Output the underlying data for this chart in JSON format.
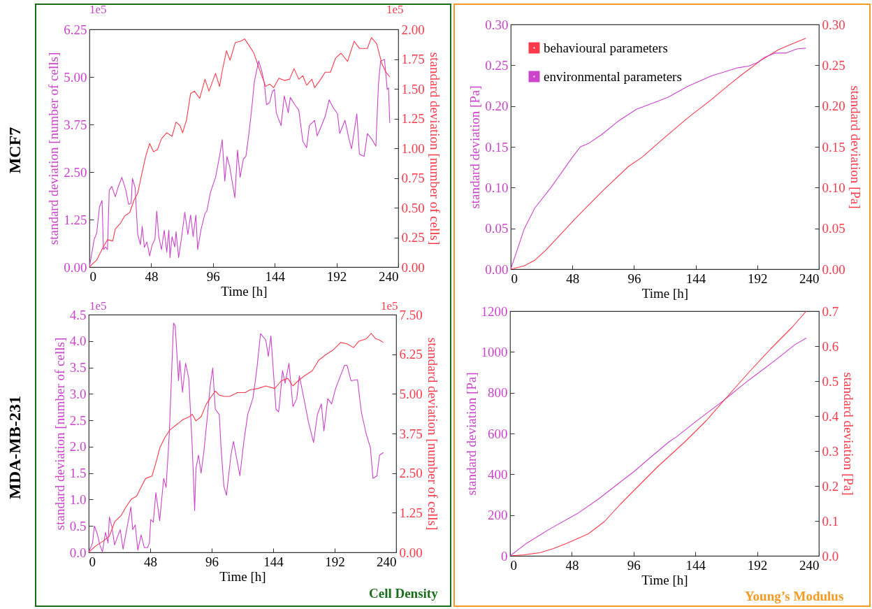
{
  "chart_data": [
    {
      "type": "line",
      "xlabel": "Time [h]",
      "ylabel": "standard deviation [number of cells]",
      "y2label": "standard deviation [number of cells]",
      "xlim": [
        0,
        240
      ],
      "xticks": [
        0,
        48,
        96,
        144,
        192,
        240
      ],
      "ylim": [
        0,
        6.25
      ],
      "yticks": [
        {
          "value": 0,
          "label": "0.00"
        },
        1.25,
        {
          "value": 2.5,
          "label": "2.50"
        },
        3.75,
        {
          "value": 5,
          "label": "5.00"
        },
        6.25
      ],
      "y2lim": [
        0,
        2
      ],
      "y2ticks": [
        {
          "value": 0,
          "label": "0.00"
        },
        0.25,
        {
          "value": 0.5,
          "label": "0.50"
        },
        0.75,
        {
          "value": 1,
          "label": "1.00"
        },
        1.25,
        {
          "value": 1.5,
          "label": "1.50"
        },
        1.75,
        {
          "value": 2,
          "label": "2.00"
        }
      ],
      "annotations": [
        "MCF7",
        "1e5",
        "1e5"
      ],
      "series": [
        {
          "color": "#cc44cc",
          "x": [
            0,
            3.7,
            5.7,
            7.8,
            9.8,
            10.9,
            12.5,
            14,
            15.4,
            17.4,
            20.1,
            22.2,
            25.2,
            28.3,
            30.4,
            32.4,
            33.4,
            35.5,
            37.5,
            39.6,
            41,
            42.7,
            44.7,
            46.8,
            48.8,
            50.9,
            52.3,
            53.9,
            56,
            58.1,
            60.1,
            61.7,
            62.6,
            64.2,
            66.3,
            67.3,
            69.3,
            71.4,
            74.1,
            76.5,
            78.6,
            80.6,
            82.7,
            84.1,
            86.8,
            89.8,
            91.3,
            94,
            98,
            101.1,
            103.2,
            105.2,
            106.9,
            109,
            113,
            115.1,
            117.1,
            119.6,
            121.6,
            123.7,
            125.7,
            128.2,
            131.5,
            134,
            136,
            137.6,
            140.1,
            142.1,
            143.8,
            145.2,
            148.9,
            151.4,
            154.5,
            156.1,
            159.6,
            162.7,
            165.8,
            168.8,
            170.9,
            175,
            177,
            179.5,
            183.2,
            186.3,
            189.3,
            192.8,
            194.5,
            198.6,
            201.6,
            203.7,
            207.8,
            209.8,
            213.5,
            216,
            219.1,
            222.6,
            224.6,
            226.3,
            229.3,
            231.4,
            232.4,
            233.4
          ],
          "values": [
            0,
            0.73,
            0.9,
            1.58,
            1.75,
            0.46,
            0.53,
            0.46,
            2.02,
            2.12,
            1.85,
            2.09,
            2.36,
            2.02,
            1.65,
            1.68,
            2.33,
            2.09,
            0.86,
            0.59,
            1.07,
            0.52,
            0.66,
            0.29,
            0.59,
            0.73,
            1.47,
            0.8,
            0.46,
            0.97,
            0.39,
            0.97,
            0.25,
            0.8,
            0.53,
            0.93,
            0.25,
            0.73,
            1.44,
            0.86,
            1.37,
            0.8,
            1.37,
            0.46,
            1,
            1.41,
            1.48,
            1.96,
            2.36,
            2.91,
            3.35,
            2.26,
            2.91,
            2.64,
            1.82,
            3.08,
            2.36,
            2.84,
            2.91,
            3.45,
            4.03,
            4.88,
            5.42,
            5.15,
            4.81,
            4.27,
            4.33,
            4.61,
            4.67,
            4.06,
            3.72,
            4.5,
            4.06,
            4.46,
            4.27,
            4.13,
            3.31,
            3.14,
            3.72,
            3.86,
            3.45,
            3.65,
            3.96,
            4.4,
            4.2,
            4.03,
            3.51,
            3.86,
            3.38,
            3.11,
            4.03,
            2.97,
            2.91,
            3.51,
            3.38,
            3.18,
            4.81,
            5.42,
            5.46,
            4.67,
            4.71,
            3.79
          ]
        },
        {
          "color": "#ff3b4b",
          "axis": "y2",
          "x": [
            0,
            2.7,
            5.7,
            9.8,
            14,
            18.1,
            20.1,
            24.2,
            27.3,
            31.4,
            34.5,
            37.5,
            40.6,
            43.7,
            46.8,
            49.8,
            52.9,
            56,
            60.1,
            64.2,
            67.3,
            70.4,
            72.4,
            75.5,
            78.6,
            81.6,
            85.7,
            89.8,
            92.9,
            98,
            101.1,
            103.2,
            106.5,
            109.3,
            113.4,
            117.5,
            120.6,
            123.7,
            127.8,
            131.9,
            137,
            140.1,
            143.2,
            147.3,
            151.4,
            155.5,
            159,
            162.7,
            165.8,
            168.8,
            172.9,
            175,
            179.1,
            183.2,
            187.3,
            191.4,
            195.5,
            200.6,
            205.7,
            209.8,
            216,
            219.1,
            223.2,
            227.3,
            230.4,
            233.4
          ],
          "values": [
            0,
            0.03,
            0.06,
            0.15,
            0.23,
            0.22,
            0.32,
            0.37,
            0.43,
            0.46,
            0.56,
            0.62,
            0.78,
            0.93,
            1.04,
            0.97,
            0.99,
            1.08,
            1.13,
            1.1,
            1.22,
            1.19,
            1.13,
            1.24,
            1.46,
            1.48,
            1.42,
            1.58,
            1.48,
            1.63,
            1.52,
            1.65,
            1.82,
            1.74,
            1.89,
            1.9,
            1.92,
            1.87,
            1.8,
            1.67,
            1.52,
            1.54,
            1.51,
            1.59,
            1.57,
            1.58,
            1.67,
            1.58,
            1.61,
            1.53,
            1.58,
            1.51,
            1.57,
            1.64,
            1.64,
            1.76,
            1.8,
            1.73,
            1.9,
            1.84,
            1.84,
            1.93,
            1.88,
            1.71,
            1.64,
            1.6
          ]
        }
      ]
    },
    {
      "type": "line",
      "xlabel": "Time [h]",
      "ylabel": "standard deviation [Pa]",
      "y2label": "standard deviation [Pa]",
      "xlim": [
        0,
        240
      ],
      "xticks": [
        0,
        48,
        96,
        144,
        192,
        240
      ],
      "ylim": [
        0,
        0.3
      ],
      "yticks": [
        {
          "value": 0,
          "label": "0.00"
        },
        0.05,
        {
          "value": 0.1,
          "label": "0.10"
        },
        0.15,
        {
          "value": 0.2,
          "label": "0.20"
        },
        0.25,
        {
          "value": 0.3,
          "label": "0.30"
        }
      ],
      "y2lim": [
        0,
        0.3
      ],
      "y2ticks": [
        {
          "value": 0,
          "label": "0.00"
        },
        0.05,
        {
          "value": 0.1,
          "label": "0.10"
        },
        0.15,
        {
          "value": 0.2,
          "label": "0.20"
        },
        0.25,
        {
          "value": 0.3,
          "label": "0.30"
        }
      ],
      "legend": "top left",
      "series": [
        {
          "name": "behavioural parameters",
          "color": "#ff3b4b",
          "axis": "y2",
          "x": [
            0,
            10.4,
            18.75,
            27.1,
            39.6,
            52.1,
            72.9,
            91.7,
            102.1,
            118.75,
            137.5,
            156.3,
            170.8,
            181.25,
            195.8,
            208.3,
            218.75,
            229.8
          ],
          "values": [
            0,
            0.004,
            0.011,
            0.023,
            0.044,
            0.065,
            0.098,
            0.126,
            0.137,
            0.16,
            0.185,
            0.208,
            0.227,
            0.24,
            0.257,
            0.269,
            0.276,
            0.283
          ]
        },
        {
          "name": "environmental parameters",
          "color": "#cc44cc",
          "x": [
            0,
            10.4,
            18.75,
            31.25,
            47.9,
            54.2,
            60.4,
            70.8,
            83.3,
            97.9,
            114.6,
            122.9,
            137.5,
            156.3,
            177.1,
            185.4,
            191.7,
            197.9,
            206.3,
            214.6,
            222.9,
            229.8
          ],
          "values": [
            0,
            0.049,
            0.075,
            0.1,
            0.137,
            0.15,
            0.154,
            0.165,
            0.181,
            0.196,
            0.206,
            0.211,
            0.224,
            0.237,
            0.247,
            0.249,
            0.253,
            0.26,
            0.265,
            0.265,
            0.27,
            0.271
          ]
        }
      ]
    },
    {
      "type": "line",
      "xlabel": "Time [h]",
      "ylabel": "standard deviation [number of cells]",
      "y2label": "standard deviation [number of cells]",
      "xlim": [
        0,
        240
      ],
      "xticks": [
        0,
        48,
        96,
        144,
        192,
        240
      ],
      "ylim": [
        0,
        4.5
      ],
      "yticks": [
        {
          "value": 0,
          "label": "0.0"
        },
        0.5,
        {
          "value": 1,
          "label": "1.0"
        },
        1.5,
        {
          "value": 2,
          "label": "2.0"
        },
        2.5,
        {
          "value": 3,
          "label": "3.0"
        },
        3.5,
        {
          "value": 4,
          "label": "4.0"
        },
        4.5
      ],
      "y2lim": [
        0,
        7.5
      ],
      "y2ticks": [
        {
          "value": 0,
          "label": "0.00"
        },
        1.25,
        {
          "value": 2.5,
          "label": "2.50"
        },
        3.75,
        {
          "value": 5,
          "label": "5.00"
        },
        6.25,
        {
          "value": 7.5,
          "label": "7.50"
        }
      ],
      "annotations": [
        "MDA-MB-231",
        "1e5",
        "1e5",
        "Cell Density"
      ],
      "series": [
        {
          "color": "#cc44cc",
          "x": [
            0,
            3,
            4.4,
            6.7,
            8.7,
            10.7,
            13.1,
            15.1,
            16.1,
            18.1,
            20.2,
            22.2,
            24.6,
            26.8,
            30.3,
            32.9,
            34.3,
            36.3,
            38.3,
            40.9,
            43.4,
            45.9,
            47.4,
            48.4,
            50.4,
            52.4,
            55.4,
            58.5,
            60.4,
            62.9,
            66.2,
            67.5,
            70.1,
            71.1,
            73.2,
            75.6,
            78.1,
            80.7,
            82.7,
            83.7,
            85.7,
            87.7,
            89.8,
            92.4,
            94.8,
            96.8,
            98.8,
            101.9,
            103.3,
            105.5,
            107.5,
            111,
            113,
            118,
            121,
            124.1,
            126.1,
            128.1,
            131.1,
            134.1,
            138.2,
            140.2,
            142.2,
            146.2,
            148.3,
            151.3,
            153.3,
            156.3,
            159.4,
            162.4,
            164.4,
            168.4,
            171.5,
            175.5,
            178.5,
            181.6,
            183.6,
            186.6,
            189.6,
            192.7,
            195.7,
            199.7,
            201.7,
            204.7,
            209.8,
            212.8,
            216.5,
            219.9,
            221.9,
            225,
            227,
            230
          ],
          "values": [
            0,
            0.18,
            0.5,
            0.35,
            0.14,
            0.01,
            0.38,
            0.18,
            0.67,
            0.48,
            0.14,
            0.28,
            0.43,
            0.06,
            0.52,
            0.86,
            0.43,
            0.52,
            0.04,
            0.33,
            0.09,
            0.09,
            0.18,
            0.62,
            0.57,
            1.13,
            0.6,
            1.4,
            1.23,
            2.25,
            4.34,
            4.29,
            3.25,
            3.63,
            3.03,
            3.58,
            3.29,
            2.06,
            0.79,
            1.59,
            1.84,
            1.5,
            1.89,
            2.52,
            3.15,
            3.49,
            2.71,
            2.61,
            1.98,
            1.25,
            1.08,
            1.84,
            2.1,
            1.45,
            2.08,
            2.61,
            2.76,
            2.91,
            3.44,
            4.14,
            4.02,
            3.71,
            4.1,
            2.71,
            2.66,
            3.44,
            3.2,
            3.58,
            2.76,
            2.91,
            3.34,
            2.86,
            2.47,
            2.08,
            2.61,
            2.81,
            2.3,
            2.91,
            2.81,
            3.1,
            3.29,
            3.54,
            3.54,
            3.25,
            3.27,
            2.66,
            2.25,
            1.98,
            1.4,
            1.45,
            1.84,
            1.89
          ]
        },
        {
          "color": "#ff3b4b",
          "axis": "y2",
          "x": [
            0,
            5,
            11.1,
            16.1,
            20.2,
            25.2,
            29.2,
            33.3,
            37.3,
            41.3,
            44.4,
            49.4,
            52.4,
            55.5,
            59.5,
            63.5,
            68.6,
            73.6,
            78.6,
            80.7,
            83.7,
            87.7,
            91.8,
            95.8,
            98.8,
            101.9,
            105.9,
            110,
            116,
            122,
            126.1,
            132.1,
            138.2,
            145.2,
            150.3,
            155.3,
            159.4,
            163.4,
            168.4,
            174.5,
            179.5,
            184.5,
            190.6,
            196.6,
            201.7,
            206.7,
            210.8,
            216.8,
            220.5,
            223.9,
            227,
            230
          ],
          "values": [
            0,
            0.19,
            0.35,
            0.51,
            0.96,
            1.16,
            1.44,
            1.68,
            1.77,
            2.09,
            2.33,
            2.41,
            2.82,
            3.3,
            3.63,
            3.87,
            4.03,
            4.19,
            4.28,
            4.36,
            4.15,
            4.28,
            4.68,
            4.92,
            5.09,
            4.96,
            4.92,
            4.92,
            5.04,
            5.04,
            5.13,
            5.17,
            5.25,
            5.17,
            5.41,
            5.49,
            5.25,
            5.41,
            5.57,
            5.73,
            6.06,
            6.22,
            6.38,
            6.62,
            6.58,
            6.46,
            6.66,
            6.74,
            6.91,
            6.74,
            6.7,
            6.62
          ]
        }
      ]
    },
    {
      "type": "line",
      "xlabel": "Time [h]",
      "ylabel": "standard deviation [Pa]",
      "y2label": "standard deviation [Pa]",
      "xlim": [
        0,
        240
      ],
      "xticks": [
        0,
        48,
        96,
        144,
        192,
        240
      ],
      "ylim": [
        0,
        1200
      ],
      "yticks": [
        0,
        200,
        400,
        600,
        800,
        1000,
        1200
      ],
      "y2lim": [
        0,
        0.7
      ],
      "y2ticks": [
        {
          "value": 0,
          "label": "0.0"
        },
        0.1,
        0.2,
        0.3,
        0.4,
        0.5,
        0.6,
        0.7
      ],
      "annotations": [
        "Young’s Modulus"
      ],
      "series": [
        {
          "color": "#cc44cc",
          "x": [
            0,
            12.9,
            31.7,
            52.5,
            69.2,
            87.9,
            96.25,
            110.8,
            123.3,
            129.6,
            144.2,
            165,
            181.7,
            190,
            206.7,
            221.25,
            230.2
          ],
          "values": [
            0,
            62,
            135,
            208,
            281,
            373,
            413,
            492,
            558,
            585,
            658,
            757,
            843,
            883,
            962,
            1035,
            1068
          ]
        },
        {
          "color": "#ff3b4b",
          "axis": "y2",
          "x": [
            0,
            10.8,
            23.3,
            33.75,
            44.2,
            60.8,
            73.3,
            85.8,
            102.5,
            115,
            135.8,
            152.5,
            169.2,
            185.8,
            202.5,
            219.2,
            230.2
          ],
          "values": [
            0,
            0.003,
            0.009,
            0.021,
            0.036,
            0.063,
            0.098,
            0.148,
            0.21,
            0.256,
            0.326,
            0.387,
            0.457,
            0.526,
            0.592,
            0.654,
            0.7
          ]
        }
      ]
    }
  ]
}
